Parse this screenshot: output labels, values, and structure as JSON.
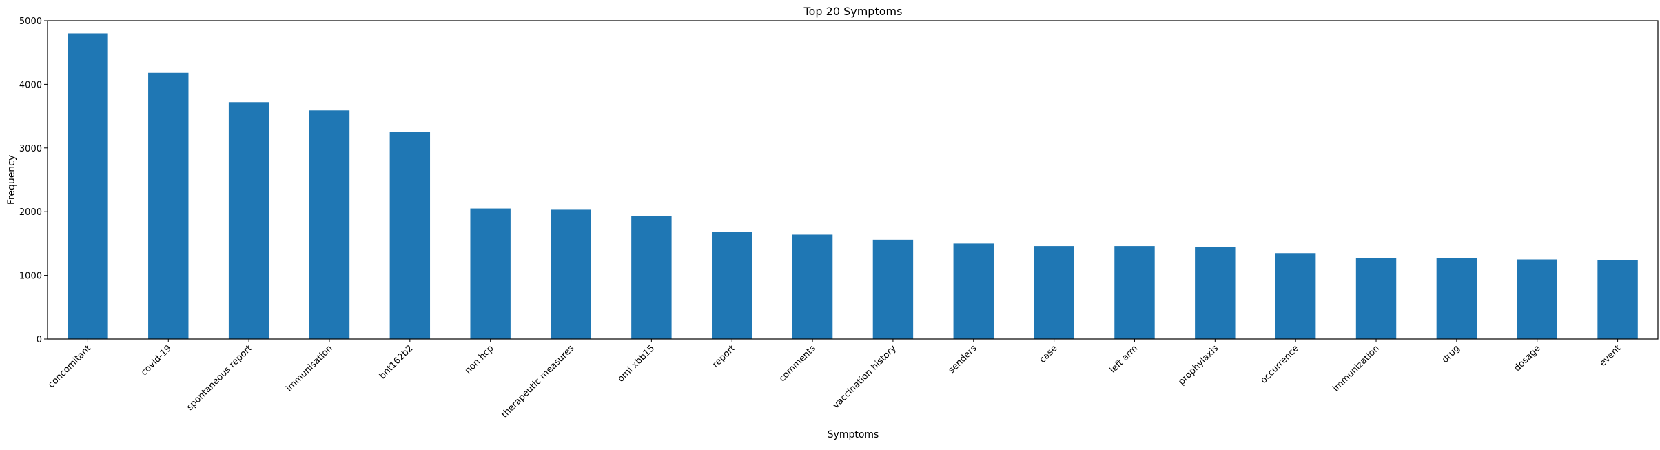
{
  "chart_data": {
    "type": "bar",
    "title": "Top 20 Symptoms",
    "xlabel": "Symptoms",
    "ylabel": "Frequency",
    "ylim": [
      0,
      5000
    ],
    "yticks": [
      "0",
      "1000",
      "2000",
      "3000",
      "4000",
      "5000"
    ],
    "categories": [
      "concomitant",
      "covid-19",
      "spontaneous report",
      "immunisation",
      "bnt162b2",
      "non hcp",
      "therapeutic measures",
      "omi xbb15",
      "report",
      "comments",
      "vaccination history",
      "senders",
      "case",
      "left arm",
      "prophylaxis",
      "occurrence",
      "immunization",
      "drug",
      "dosage",
      "event"
    ],
    "values": [
      4800,
      4180,
      3720,
      3590,
      3250,
      2050,
      2030,
      1930,
      1680,
      1640,
      1560,
      1500,
      1460,
      1460,
      1450,
      1350,
      1270,
      1270,
      1250,
      1240
    ],
    "bar_color": "#1f77b4",
    "grid": false,
    "legend": "none"
  }
}
